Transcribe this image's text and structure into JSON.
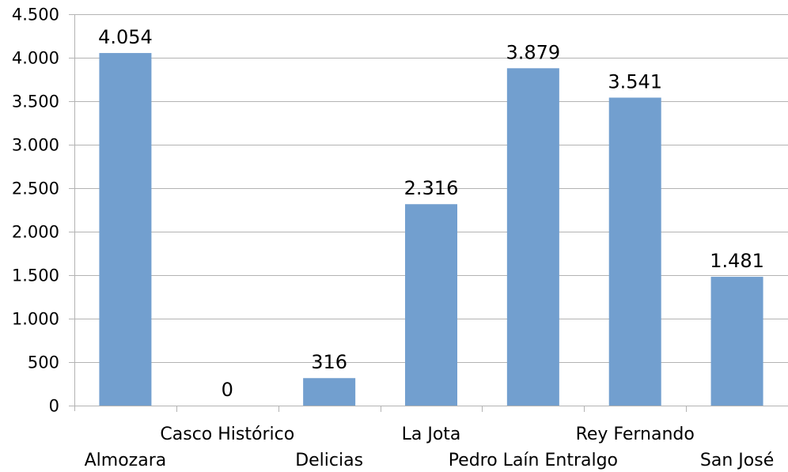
{
  "chart_data": {
    "type": "bar",
    "title": "",
    "xlabel": "",
    "ylabel": "",
    "categories": [
      "Almozara",
      "Casco Histórico",
      "Delicias",
      "La Jota",
      "Pedro Laín Entralgo",
      "Rey Fernando",
      "San José"
    ],
    "values": [
      4054,
      0,
      316,
      2316,
      3879,
      3541,
      1481
    ],
    "data_labels": [
      "4.054",
      "0",
      "316",
      "2.316",
      "3.879",
      "3.541",
      "1.481"
    ],
    "ylim": [
      0,
      4500
    ],
    "yticks": [
      0,
      500,
      1000,
      1500,
      2000,
      2500,
      3000,
      3500,
      4000,
      4500
    ],
    "ytick_labels": [
      "0",
      "500",
      "1.000",
      "1.500",
      "2.000",
      "2.500",
      "3.000",
      "3.500",
      "4.000",
      "4.500"
    ],
    "grid": true,
    "legend": "none",
    "colors": {
      "bar": "#729fcf",
      "grid": "#b3b3b3",
      "axis": "#b3b3b3"
    }
  }
}
